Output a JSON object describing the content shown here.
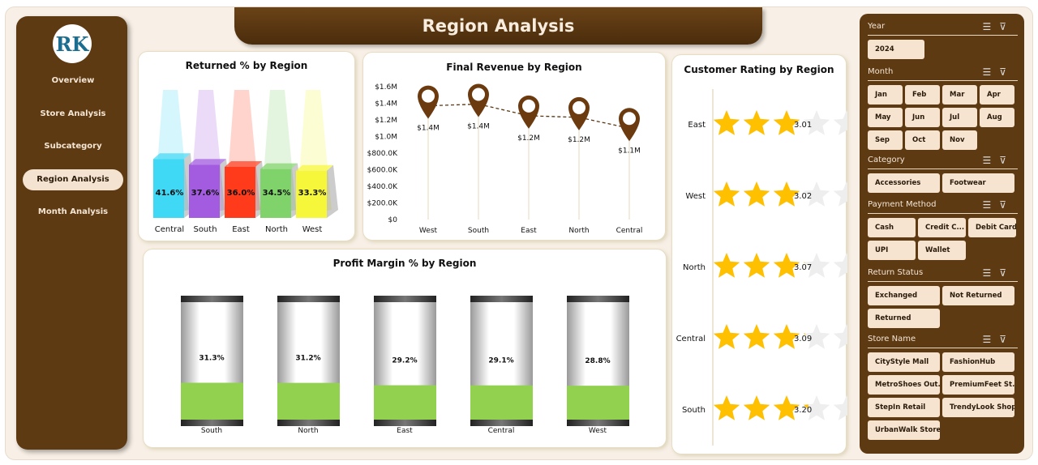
{
  "title": "Region Analysis",
  "nav": [
    "Overview",
    "Store Analysis",
    "Subcategory",
    "Region Analysis",
    "Month Analysis"
  ],
  "active_nav": "Region Analysis",
  "logo_text": "RK",
  "filters": {
    "year": {
      "label": "Year",
      "items": [
        "2024"
      ]
    },
    "month": {
      "label": "Month",
      "items": [
        "Jan",
        "Feb",
        "Mar",
        "Apr",
        "May",
        "Jun",
        "Jul",
        "Aug",
        "Sep",
        "Oct",
        "Nov"
      ]
    },
    "category": {
      "label": "Category",
      "items": [
        "Accessories",
        "Footwear"
      ]
    },
    "payment": {
      "label": "Payment Method",
      "items": [
        "Cash",
        "Credit C...",
        "Debit Card",
        "UPI",
        "Wallet"
      ]
    },
    "return_status": {
      "label": "Return Status",
      "items": [
        "Exchanged",
        "Not Returned",
        "Returned"
      ]
    },
    "store": {
      "label": "Store Name",
      "items": [
        "CityStyle Mall",
        "FashionHub",
        "MetroShoes Out...",
        "PremiumFeet St...",
        "StepIn Retail",
        "TrendyLook Shop",
        "UrbanWalk Store"
      ]
    }
  },
  "chart_data": [
    {
      "type": "bar",
      "title": "Returned % by Region",
      "categories": [
        "Central",
        "South",
        "East",
        "North",
        "West"
      ],
      "values": [
        41.6,
        37.6,
        36.0,
        34.5,
        33.3
      ],
      "labels": [
        "41.6%",
        "37.6%",
        "36.0%",
        "34.5%",
        "33.3%"
      ],
      "colors": [
        "#3fd8f5",
        "#a35be0",
        "#ff3b1c",
        "#7fd36a",
        "#f6f63a"
      ]
    },
    {
      "type": "line",
      "title": "Final Revenue by Region",
      "categories": [
        "West",
        "South",
        "East",
        "North",
        "Central"
      ],
      "values": [
        1370000,
        1390000,
        1250000,
        1230000,
        1100000
      ],
      "labels": [
        "$1.4M",
        "$1.4M",
        "$1.2M",
        "$1.2M",
        "$1.1M"
      ],
      "ylim": [
        0,
        1600000
      ],
      "yticks": [
        "$0",
        "$200.0K",
        "$400.0K",
        "$600.0K",
        "$800.0K",
        "$1.0M",
        "$1.2M",
        "$1.4M",
        "$1.6M"
      ],
      "color": "#6b3a0f"
    },
    {
      "type": "bar",
      "title": "Profit Margin % by Region",
      "categories": [
        "South",
        "North",
        "East",
        "Central",
        "West"
      ],
      "values": [
        31.3,
        31.2,
        29.2,
        29.1,
        28.8
      ],
      "labels": [
        "31.3%",
        "31.2%",
        "29.2%",
        "29.1%",
        "28.8%"
      ],
      "color": "#92d050"
    },
    {
      "type": "bar",
      "title": "Customer Rating by Region",
      "categories": [
        "East",
        "West",
        "North",
        "Central",
        "South"
      ],
      "values": [
        3.01,
        3.02,
        3.07,
        3.09,
        3.2
      ],
      "labels": [
        "3.01",
        "3.02",
        "3.07",
        "3.09",
        "3.20"
      ],
      "max": 5,
      "color": "#ffc000"
    }
  ]
}
